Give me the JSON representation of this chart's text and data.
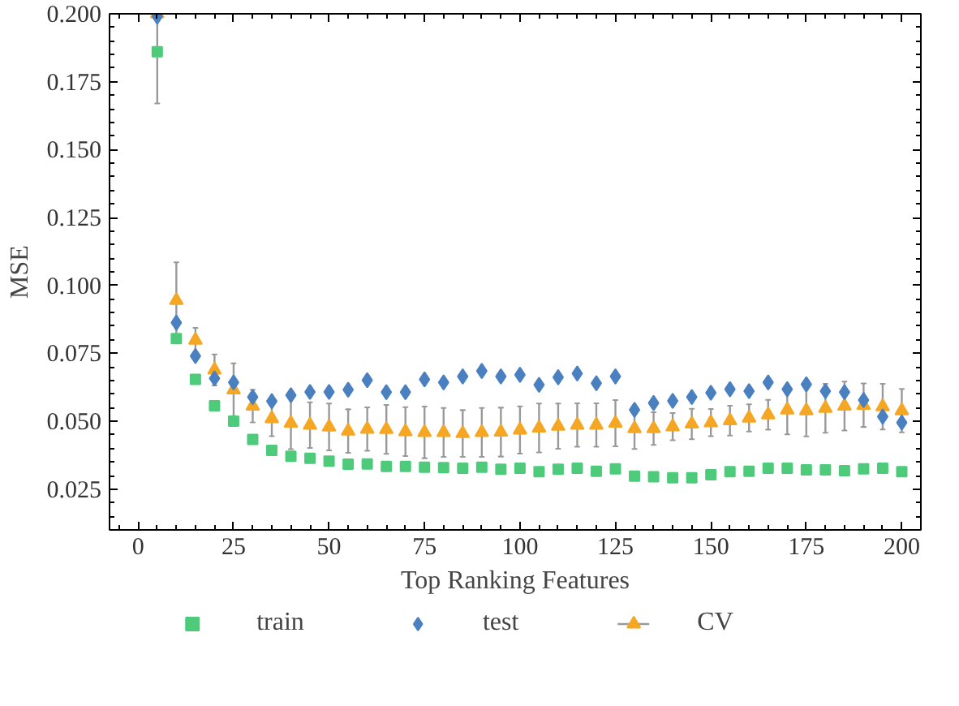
{
  "chart_data": {
    "type": "scatter",
    "xlabel": "Top Ranking Features",
    "ylabel": "MSE",
    "x": [
      5,
      10,
      15,
      20,
      25,
      30,
      35,
      40,
      45,
      50,
      55,
      60,
      65,
      70,
      75,
      80,
      85,
      90,
      95,
      100,
      105,
      110,
      115,
      120,
      125,
      130,
      135,
      140,
      145,
      150,
      155,
      160,
      165,
      170,
      175,
      180,
      185,
      190,
      195,
      200
    ],
    "series": [
      {
        "name": "train",
        "color": "#4dcb7b",
        "marker": "square",
        "values": [
          0.186,
          0.0804,
          0.0654,
          0.0557,
          0.05,
          0.0433,
          0.0393,
          0.0371,
          0.0364,
          0.0353,
          0.0342,
          0.0343,
          0.0334,
          0.0334,
          0.0331,
          0.0329,
          0.0327,
          0.0331,
          0.0323,
          0.0327,
          0.0314,
          0.0323,
          0.0327,
          0.0316,
          0.0325,
          0.0298,
          0.0296,
          0.0292,
          0.0292,
          0.0303,
          0.0314,
          0.0316,
          0.0327,
          0.0327,
          0.0321,
          0.0321,
          0.0318,
          0.0325,
          0.0327,
          0.0314
        ]
      },
      {
        "name": "test",
        "color": "#4a80c0",
        "marker": "diamond",
        "values": [
          0.199,
          0.0863,
          0.074,
          0.0658,
          0.0643,
          0.0589,
          0.0574,
          0.0596,
          0.0608,
          0.0608,
          0.0616,
          0.0651,
          0.0607,
          0.0607,
          0.0654,
          0.0643,
          0.0665,
          0.0685,
          0.0665,
          0.0671,
          0.0634,
          0.0662,
          0.0676,
          0.064,
          0.0665,
          0.0542,
          0.0567,
          0.0575,
          0.0589,
          0.0605,
          0.0618,
          0.0611,
          0.0643,
          0.0618,
          0.0636,
          0.0611,
          0.0607,
          0.0578,
          0.0517,
          0.0495
        ]
      },
      {
        "name": "CV",
        "color": "#f5a623",
        "marker": "triangle",
        "values": [
          0.2,
          0.0945,
          0.0799,
          0.0689,
          0.0616,
          0.0556,
          0.051,
          0.0493,
          0.0486,
          0.0479,
          0.0464,
          0.0471,
          0.047,
          0.0462,
          0.0459,
          0.0459,
          0.0455,
          0.0459,
          0.046,
          0.0468,
          0.0475,
          0.0482,
          0.0486,
          0.0486,
          0.0493,
          0.0473,
          0.0473,
          0.048,
          0.049,
          0.0495,
          0.0502,
          0.0512,
          0.0524,
          0.0542,
          0.0539,
          0.0548,
          0.0556,
          0.0559,
          0.0554,
          0.0539
        ],
        "errors": [
          [
            0.167,
            0.2
          ],
          0.014,
          0.0045,
          0.0057,
          0.0097,
          0.006,
          0.0065,
          0.0096,
          0.0084,
          0.0086,
          0.008,
          0.008,
          0.009,
          0.009,
          0.0095,
          0.009,
          0.0086,
          0.009,
          0.009,
          0.0087,
          0.009,
          0.0083,
          0.008,
          0.008,
          0.0085,
          0.0075,
          0.006,
          0.005,
          0.0056,
          0.005,
          0.0055,
          0.005,
          0.0055,
          0.009,
          0.0095,
          0.009,
          0.009,
          0.008,
          0.0084,
          0.008
        ]
      }
    ],
    "xlim": [
      -7.5,
      205
    ],
    "xticks": [
      0,
      25,
      50,
      75,
      100,
      125,
      150,
      175,
      200
    ],
    "ylim": [
      0.01,
      0.2
    ],
    "yticks": [
      {
        "value": 0.025,
        "label": "0.025"
      },
      {
        "value": 0.05,
        "label": "0.050"
      },
      {
        "value": 0.075,
        "label": "0.075"
      },
      {
        "value": 0.1,
        "label": "0.100"
      },
      {
        "value": 0.125,
        "label": "0.125"
      },
      {
        "value": 0.15,
        "label": "0.150"
      },
      {
        "value": 0.175,
        "label": "0.175"
      },
      {
        "value": 0.2,
        "label": "0.200"
      }
    ],
    "grid": false,
    "legend": "bottom"
  }
}
